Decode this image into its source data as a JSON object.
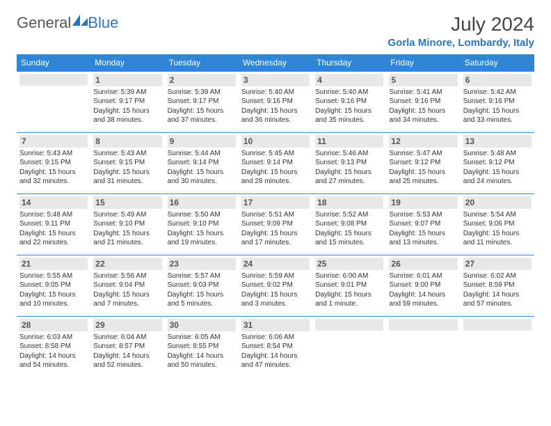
{
  "brand": {
    "part1": "General",
    "part2": "Blue"
  },
  "title": "July 2024",
  "location": "Gorla Minore, Lombardy, Italy",
  "colors": {
    "header_bg": "#2e86d4",
    "header_text": "#ffffff",
    "brand_accent": "#2976bb",
    "daynum_bg": "#e8e8e8",
    "row_border": "#2e86d4",
    "body_text": "#333333",
    "page_bg": "#ffffff"
  },
  "styling": {
    "month_title_fontsize": 28,
    "location_fontsize": 15,
    "weekday_fontsize": 12,
    "daynum_fontsize": 12,
    "cell_fontsize": 10,
    "columns": 7,
    "rows": 5
  },
  "weekdays": [
    "Sunday",
    "Monday",
    "Tuesday",
    "Wednesday",
    "Thursday",
    "Friday",
    "Saturday"
  ],
  "weeks": [
    [
      null,
      {
        "n": "1",
        "sunrise": "Sunrise: 5:39 AM",
        "sunset": "Sunset: 9:17 PM",
        "daylight": "Daylight: 15 hours and 38 minutes."
      },
      {
        "n": "2",
        "sunrise": "Sunrise: 5:39 AM",
        "sunset": "Sunset: 9:17 PM",
        "daylight": "Daylight: 15 hours and 37 minutes."
      },
      {
        "n": "3",
        "sunrise": "Sunrise: 5:40 AM",
        "sunset": "Sunset: 9:16 PM",
        "daylight": "Daylight: 15 hours and 36 minutes."
      },
      {
        "n": "4",
        "sunrise": "Sunrise: 5:40 AM",
        "sunset": "Sunset: 9:16 PM",
        "daylight": "Daylight: 15 hours and 35 minutes."
      },
      {
        "n": "5",
        "sunrise": "Sunrise: 5:41 AM",
        "sunset": "Sunset: 9:16 PM",
        "daylight": "Daylight: 15 hours and 34 minutes."
      },
      {
        "n": "6",
        "sunrise": "Sunrise: 5:42 AM",
        "sunset": "Sunset: 9:16 PM",
        "daylight": "Daylight: 15 hours and 33 minutes."
      }
    ],
    [
      {
        "n": "7",
        "sunrise": "Sunrise: 5:43 AM",
        "sunset": "Sunset: 9:15 PM",
        "daylight": "Daylight: 15 hours and 32 minutes."
      },
      {
        "n": "8",
        "sunrise": "Sunrise: 5:43 AM",
        "sunset": "Sunset: 9:15 PM",
        "daylight": "Daylight: 15 hours and 31 minutes."
      },
      {
        "n": "9",
        "sunrise": "Sunrise: 5:44 AM",
        "sunset": "Sunset: 9:14 PM",
        "daylight": "Daylight: 15 hours and 30 minutes."
      },
      {
        "n": "10",
        "sunrise": "Sunrise: 5:45 AM",
        "sunset": "Sunset: 9:14 PM",
        "daylight": "Daylight: 15 hours and 28 minutes."
      },
      {
        "n": "11",
        "sunrise": "Sunrise: 5:46 AM",
        "sunset": "Sunset: 9:13 PM",
        "daylight": "Daylight: 15 hours and 27 minutes."
      },
      {
        "n": "12",
        "sunrise": "Sunrise: 5:47 AM",
        "sunset": "Sunset: 9:12 PM",
        "daylight": "Daylight: 15 hours and 25 minutes."
      },
      {
        "n": "13",
        "sunrise": "Sunrise: 5:48 AM",
        "sunset": "Sunset: 9:12 PM",
        "daylight": "Daylight: 15 hours and 24 minutes."
      }
    ],
    [
      {
        "n": "14",
        "sunrise": "Sunrise: 5:48 AM",
        "sunset": "Sunset: 9:11 PM",
        "daylight": "Daylight: 15 hours and 22 minutes."
      },
      {
        "n": "15",
        "sunrise": "Sunrise: 5:49 AM",
        "sunset": "Sunset: 9:10 PM",
        "daylight": "Daylight: 15 hours and 21 minutes."
      },
      {
        "n": "16",
        "sunrise": "Sunrise: 5:50 AM",
        "sunset": "Sunset: 9:10 PM",
        "daylight": "Daylight: 15 hours and 19 minutes."
      },
      {
        "n": "17",
        "sunrise": "Sunrise: 5:51 AM",
        "sunset": "Sunset: 9:09 PM",
        "daylight": "Daylight: 15 hours and 17 minutes."
      },
      {
        "n": "18",
        "sunrise": "Sunrise: 5:52 AM",
        "sunset": "Sunset: 9:08 PM",
        "daylight": "Daylight: 15 hours and 15 minutes."
      },
      {
        "n": "19",
        "sunrise": "Sunrise: 5:53 AM",
        "sunset": "Sunset: 9:07 PM",
        "daylight": "Daylight: 15 hours and 13 minutes."
      },
      {
        "n": "20",
        "sunrise": "Sunrise: 5:54 AM",
        "sunset": "Sunset: 9:06 PM",
        "daylight": "Daylight: 15 hours and 11 minutes."
      }
    ],
    [
      {
        "n": "21",
        "sunrise": "Sunrise: 5:55 AM",
        "sunset": "Sunset: 9:05 PM",
        "daylight": "Daylight: 15 hours and 10 minutes."
      },
      {
        "n": "22",
        "sunrise": "Sunrise: 5:56 AM",
        "sunset": "Sunset: 9:04 PM",
        "daylight": "Daylight: 15 hours and 7 minutes."
      },
      {
        "n": "23",
        "sunrise": "Sunrise: 5:57 AM",
        "sunset": "Sunset: 9:03 PM",
        "daylight": "Daylight: 15 hours and 5 minutes."
      },
      {
        "n": "24",
        "sunrise": "Sunrise: 5:59 AM",
        "sunset": "Sunset: 9:02 PM",
        "daylight": "Daylight: 15 hours and 3 minutes."
      },
      {
        "n": "25",
        "sunrise": "Sunrise: 6:00 AM",
        "sunset": "Sunset: 9:01 PM",
        "daylight": "Daylight: 15 hours and 1 minute."
      },
      {
        "n": "26",
        "sunrise": "Sunrise: 6:01 AM",
        "sunset": "Sunset: 9:00 PM",
        "daylight": "Daylight: 14 hours and 59 minutes."
      },
      {
        "n": "27",
        "sunrise": "Sunrise: 6:02 AM",
        "sunset": "Sunset: 8:59 PM",
        "daylight": "Daylight: 14 hours and 57 minutes."
      }
    ],
    [
      {
        "n": "28",
        "sunrise": "Sunrise: 6:03 AM",
        "sunset": "Sunset: 8:58 PM",
        "daylight": "Daylight: 14 hours and 54 minutes."
      },
      {
        "n": "29",
        "sunrise": "Sunrise: 6:04 AM",
        "sunset": "Sunset: 8:57 PM",
        "daylight": "Daylight: 14 hours and 52 minutes."
      },
      {
        "n": "30",
        "sunrise": "Sunrise: 6:05 AM",
        "sunset": "Sunset: 8:55 PM",
        "daylight": "Daylight: 14 hours and 50 minutes."
      },
      {
        "n": "31",
        "sunrise": "Sunrise: 6:06 AM",
        "sunset": "Sunset: 8:54 PM",
        "daylight": "Daylight: 14 hours and 47 minutes."
      },
      null,
      null,
      null
    ]
  ]
}
